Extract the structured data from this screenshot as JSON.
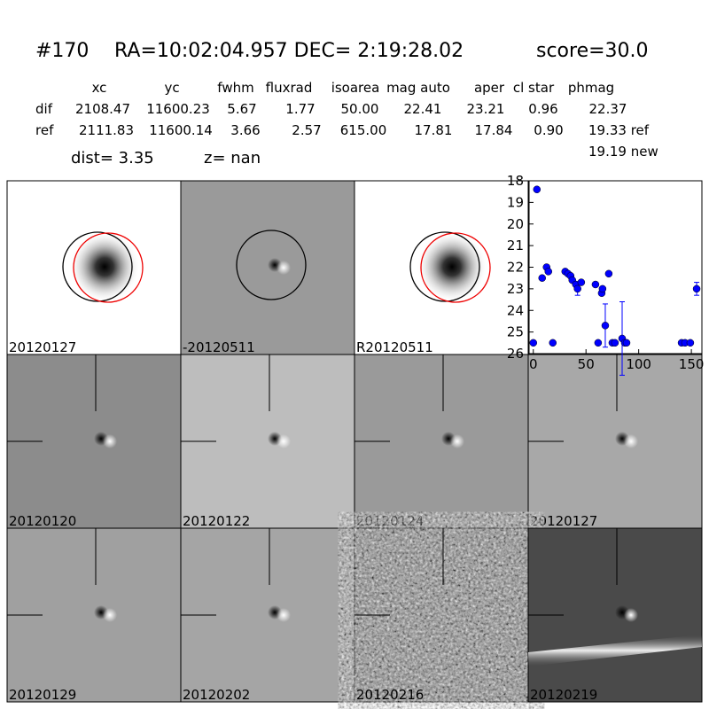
{
  "header": {
    "id": "#170",
    "coords": "RA=10:02:04.957 DEC= 2:19:28.02",
    "score": "score=30.0"
  },
  "table": {
    "columns": [
      "xc",
      "yc",
      "fwhm",
      "fluxrad",
      "isoarea",
      "mag auto",
      "aper",
      "cl star",
      "phmag"
    ],
    "rows": [
      [
        "dif",
        "2108.47",
        "11600.23",
        "5.67",
        "1.77",
        "50.00",
        "22.41",
        "23.21",
        "0.96",
        "22.37"
      ],
      [
        "ref",
        "2111.83",
        "11600.14",
        "3.66",
        "2.57",
        "615.00",
        "17.81",
        "17.84",
        "0.90",
        "19.33 ref"
      ]
    ],
    "extra": "19.19 new"
  },
  "dist": "dist=  3.35",
  "z": "z=   nan",
  "panels": [
    {
      "label": "20120127"
    },
    {
      "label": "-20120511"
    },
    {
      "label": "R20120511"
    },
    {
      "label": "20120120"
    },
    {
      "label": "20120122"
    },
    {
      "label": "20120124"
    },
    {
      "label": "20120127",
      "color": "#ff0000"
    },
    {
      "label": "20120129"
    },
    {
      "label": "20120202"
    },
    {
      "label": "20120216"
    },
    {
      "label": "20120219"
    }
  ],
  "chart_data": {
    "type": "scatter",
    "color": "#0000ff",
    "x": [
      0,
      3.4,
      8.4,
      12.6,
      14.3,
      18.5,
      30.3,
      32.9,
      35.4,
      37,
      40.4,
      42,
      45.5,
      59,
      61.5,
      64.9,
      65.7,
      68.3,
      71.6,
      75,
      77.5,
      84.3,
      86.8,
      88.5,
      140.7,
      144,
      149,
      155
    ],
    "values": [
      25.5,
      18.4,
      22.5,
      22.0,
      22.2,
      25.5,
      22.2,
      22.3,
      22.4,
      22.6,
      22.8,
      23.0,
      22.7,
      22.8,
      25.5,
      23.2,
      23.0,
      24.7,
      22.3,
      25.5,
      25.5,
      25.3,
      25.5,
      25.5,
      25.5,
      25.5,
      25.5,
      23.0
    ],
    "errors": [
      null,
      null,
      null,
      null,
      null,
      null,
      null,
      null,
      null,
      null,
      null,
      0.3,
      null,
      null,
      null,
      null,
      null,
      1.0,
      null,
      null,
      null,
      1.7,
      null,
      null,
      null,
      null,
      null,
      0.3
    ],
    "xlim": [
      -4,
      160
    ],
    "ylim": [
      26,
      18
    ],
    "xticks": [
      0,
      50,
      100,
      150
    ],
    "yticks": [
      18,
      19,
      20,
      21,
      22,
      23,
      24,
      25,
      26
    ]
  }
}
